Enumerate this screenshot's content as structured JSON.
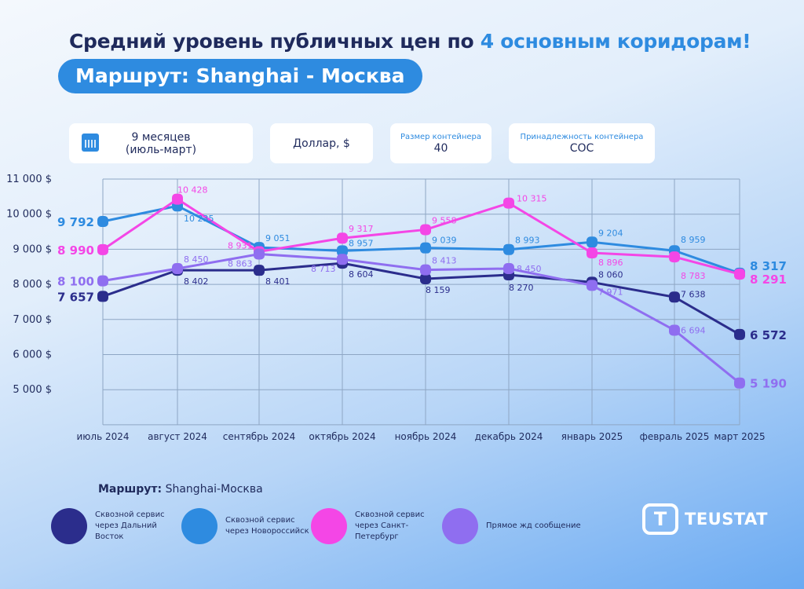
{
  "header": {
    "title_main": "Средний уровень публичных цен по ",
    "title_accent": "4 основным коридорам!",
    "route": "Маршрут: Shanghai - Москва"
  },
  "cards": {
    "period_line1": "9 месяцев",
    "period_line2": "(июль-март)",
    "currency": "Доллар, $",
    "size_label": "Размер контейнера",
    "size_value": "40",
    "ownership_label": "Принадлежность контейнера",
    "ownership_value": "COC"
  },
  "chart_data": {
    "type": "line",
    "categories": [
      "июль 2024",
      "август 2024",
      "сентябрь 2024",
      "октябрь 2024",
      "ноябрь 2024",
      "декабрь 2024",
      "январь 2025",
      "февраль 2025",
      "март 2025"
    ],
    "y_ticks": [
      "11 000 $",
      "10 000 $",
      "9 000 $",
      "8 000 $",
      "7 000 $",
      "6 000 $",
      "5 000 $"
    ],
    "ylim": [
      4000,
      11000
    ],
    "grid": true,
    "legend_position": "bottom",
    "series": [
      {
        "name": "Сквозной сервис через Дальний Восток",
        "color": "#2b2d8c",
        "values": [
          7657,
          8402,
          8401,
          8604,
          8159,
          8270,
          8060,
          7638,
          6572
        ],
        "labels": [
          "7 657",
          "8 402",
          "8 401",
          "8 604",
          "8 159",
          "8 270",
          "8 060",
          "7 638",
          "6 572"
        ]
      },
      {
        "name": "Сквозной сервис через Новороссийск",
        "color": "#2e8be0",
        "values": [
          9792,
          10235,
          9051,
          8957,
          9039,
          8993,
          9204,
          8959,
          8317
        ],
        "labels": [
          "9 792",
          "10 235",
          "9 051",
          "8 957",
          "9 039",
          "8 993",
          "9 204",
          "8 959",
          "8 317"
        ]
      },
      {
        "name": "Сквозной сервис через Санкт-Петербург",
        "color": "#f446e6",
        "values": [
          8990,
          10428,
          8931,
          9317,
          9558,
          10315,
          8896,
          8783,
          8291
        ],
        "labels": [
          "8 990",
          "10 428",
          "8 931",
          "9 317",
          "9 558",
          "10 315",
          "8 896",
          "8 783",
          "8 291"
        ]
      },
      {
        "name": "Прямое жд сообщение",
        "color": "#8f6ef0",
        "values": [
          8100,
          8450,
          8863,
          8713,
          8413,
          8450,
          7971,
          6694,
          5190
        ],
        "labels": [
          "8 100",
          "8 450",
          "8 863",
          "8 713",
          "8 413",
          "8 450",
          "7 971",
          "6 694",
          "5 190"
        ]
      }
    ]
  },
  "legend": {
    "title_bold": "Маршрут:",
    "title_rest": " Shanghai-Москва",
    "items": [
      "Сквозной сервис через Дальний Восток",
      "Сквозной сервис через Новороссийск",
      "Сквозной сервис через Санкт-Петербург",
      "Прямое жд сообщение"
    ]
  },
  "logo": {
    "text": "TEUSTAT",
    "mark": "T"
  }
}
